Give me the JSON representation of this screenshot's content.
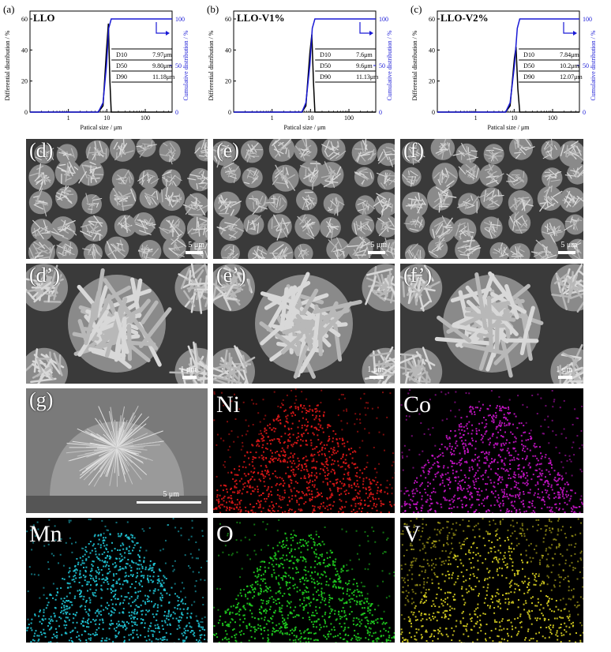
{
  "charts": [
    {
      "panel_label": "(a)",
      "title": "LLO",
      "x_label": "Patical size / μm",
      "y_label": "Differential distribution / %",
      "y2_label": "Cumulative distribution / %",
      "y_ticks": [
        "0",
        "20",
        "40",
        "60"
      ],
      "y2_ticks": [
        "0",
        "50",
        "100"
      ],
      "x_ticks": [
        "1",
        "10",
        "100"
      ],
      "table": [
        [
          "D10",
          "7.97μm"
        ],
        [
          "D50",
          "9.80μm"
        ],
        [
          "D90",
          "11.18μm"
        ]
      ]
    },
    {
      "panel_label": "(b)",
      "title": "LLO-V1%",
      "x_label": "Patical size / μm",
      "y_label": "Differential distribution / %",
      "y2_label": "Cumulative distribution / %",
      "y_ticks": [
        "0",
        "20",
        "40",
        "60"
      ],
      "y2_ticks": [
        "0",
        "50",
        "100"
      ],
      "x_ticks": [
        "1",
        "10",
        "100"
      ],
      "table": [
        [
          "D10",
          "7.6μm"
        ],
        [
          "D50",
          "9.6μm"
        ],
        [
          "D90",
          "11.13μm"
        ]
      ]
    },
    {
      "panel_label": "(c)",
      "title": "LLO-V2%",
      "x_label": "Patical size / μm",
      "y_label": "Differential distribution / %",
      "y2_label": "Cumulative distribution / %",
      "y_ticks": [
        "0",
        "20",
        "40",
        "60"
      ],
      "y2_ticks": [
        "0",
        "50",
        "100"
      ],
      "x_ticks": [
        "1",
        "10",
        "100"
      ],
      "table": [
        [
          "D10",
          "7.84μm"
        ],
        [
          "D50",
          "10.2μm"
        ],
        [
          "D90",
          "12.07μm"
        ]
      ]
    }
  ],
  "chart_data": [
    {
      "type": "line",
      "x_scale": "log",
      "xlim": [
        0.1,
        500
      ],
      "ylim": [
        0,
        60
      ],
      "y2lim": [
        0,
        100
      ],
      "series": [
        {
          "axis": "left",
          "color": "#000000",
          "x": [
            0.1,
            6,
            7.97,
            9.8,
            11,
            12,
            13,
            500
          ],
          "values": [
            0,
            0,
            4,
            40,
            57,
            20,
            0,
            0
          ]
        },
        {
          "axis": "right",
          "color": "#1a1ad6",
          "x": [
            0.1,
            6,
            7.97,
            9.8,
            11.18,
            13,
            500
          ],
          "values": [
            0,
            0,
            10,
            50,
            90,
            100,
            100
          ]
        }
      ]
    },
    {
      "type": "line",
      "x_scale": "log",
      "xlim": [
        0.1,
        500
      ],
      "ylim": [
        0,
        60
      ],
      "y2lim": [
        0,
        100
      ],
      "series": [
        {
          "axis": "left",
          "color": "#000000",
          "x": [
            0.1,
            6,
            7.6,
            9.6,
            10.8,
            12,
            13,
            500
          ],
          "values": [
            0,
            0,
            4,
            38,
            50,
            18,
            0,
            0
          ]
        },
        {
          "axis": "right",
          "color": "#1a1ad6",
          "x": [
            0.1,
            6,
            7.6,
            9.6,
            11.13,
            13,
            500
          ],
          "values": [
            0,
            0,
            10,
            50,
            90,
            100,
            100
          ]
        }
      ]
    },
    {
      "type": "line",
      "x_scale": "log",
      "xlim": [
        0.1,
        500
      ],
      "ylim": [
        0,
        60
      ],
      "y2lim": [
        0,
        100
      ],
      "series": [
        {
          "axis": "left",
          "color": "#000000",
          "x": [
            0.1,
            6,
            7.84,
            10.2,
            11.2,
            12.5,
            14,
            500
          ],
          "values": [
            0,
            0,
            4,
            35,
            42,
            15,
            0,
            0
          ]
        },
        {
          "axis": "right",
          "color": "#1a1ad6",
          "x": [
            0.1,
            6,
            7.84,
            10.2,
            12.07,
            14,
            500
          ],
          "values": [
            0,
            0,
            10,
            50,
            90,
            100,
            100
          ]
        }
      ]
    }
  ],
  "sem": {
    "row1": [
      {
        "label": "(d)",
        "scale": "5 μm"
      },
      {
        "label": "(e)",
        "scale": "5 μm"
      },
      {
        "label": "(f)",
        "scale": "5 μm"
      }
    ],
    "row2": [
      {
        "label": "(d’)",
        "scale": "1 μm"
      },
      {
        "label": "(e’)",
        "scale": "1 μm"
      },
      {
        "label": "(f’)",
        "scale": "1 μm"
      }
    ],
    "g": {
      "label": "(g)",
      "scale": "5 μm"
    }
  },
  "eds": [
    {
      "label": "Ni",
      "color": "#e01818",
      "text_color": "#ffffff"
    },
    {
      "label": "Co",
      "color": "#c814c8",
      "text_color": "#ffffff"
    },
    {
      "label": "Mn",
      "color": "#20c8d8",
      "text_color": "#ffffff"
    },
    {
      "label": "O",
      "color": "#20d020",
      "text_color": "#ffffff"
    },
    {
      "label": "V",
      "color": "#d8d020",
      "text_color": "#ffffff"
    }
  ]
}
